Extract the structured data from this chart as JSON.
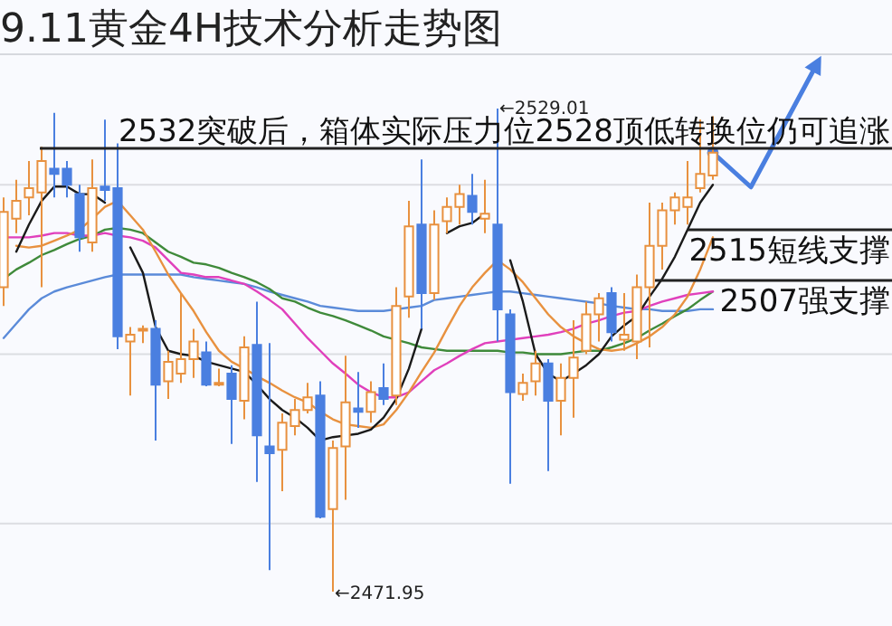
{
  "chart_data": {
    "type": "candlestick",
    "title": "9.11黄金4H技术分析走势图",
    "categories": [
      null,
      null,
      null,
      null,
      null,
      null,
      null,
      null,
      null,
      null,
      null,
      null,
      null,
      null,
      null,
      null,
      null,
      null,
      null,
      null,
      null,
      null,
      null,
      null,
      null,
      null,
      null,
      null,
      null,
      null,
      null,
      null,
      null,
      null,
      null,
      null,
      null,
      null,
      null,
      null,
      null,
      null,
      null,
      null,
      null,
      null,
      null,
      null,
      null,
      null,
      null,
      null,
      null,
      null,
      null,
      null,
      null
    ],
    "ohlc": [
      [
        2507.9,
        2518.5,
        2505.7,
        2516.8
      ],
      [
        2516.0,
        2520.6,
        2514.3,
        2518.1
      ],
      [
        2518.5,
        2522.8,
        2516.4,
        2519.6
      ],
      [
        2519.1,
        2524.5,
        2507.9,
        2522.8
      ],
      [
        2521.9,
        2528.5,
        2518.5,
        2521.3
      ],
      [
        2521.9,
        2522.8,
        2518.5,
        2520.0
      ],
      [
        2518.9,
        2520.0,
        2512.1,
        2513.8
      ],
      [
        2513.2,
        2523.0,
        2512.1,
        2519.6
      ],
      [
        2519.8,
        2527.7,
        2518.1,
        2519.4
      ],
      [
        2519.6,
        2524.9,
        2500.6,
        2502.1
      ],
      [
        2501.5,
        2503.2,
        2495.1,
        2502.3
      ],
      [
        2502.8,
        2503.4,
        2501.3,
        2503.0
      ],
      [
        2503.0,
        2504.0,
        2489.8,
        2496.4
      ],
      [
        2496.8,
        2500.4,
        2494.7,
        2499.1
      ],
      [
        2497.7,
        2507.2,
        2496.6,
        2499.4
      ],
      [
        2499.4,
        2503.0,
        2497.2,
        2501.5
      ],
      [
        2500.2,
        2501.5,
        2496.2,
        2496.4
      ],
      [
        2496.4,
        2498.3,
        2496.2,
        2496.6
      ],
      [
        2497.7,
        2498.7,
        2489.4,
        2494.7
      ],
      [
        2494.5,
        2502.1,
        2492.3,
        2500.8
      ],
      [
        2501.1,
        2506.2,
        2484.9,
        2490.4
      ],
      [
        2489.1,
        2501.3,
        2474.5,
        2488.3
      ],
      [
        2488.7,
        2493.0,
        2483.8,
        2491.9
      ],
      [
        2491.5,
        2494.7,
        2490.4,
        2493.4
      ],
      [
        2493.4,
        2496.6,
        2493.0,
        2494.9
      ],
      [
        2495.1,
        2496.8,
        2480.6,
        2480.8
      ],
      [
        2481.7,
        2489.8,
        2471.95,
        2488.9
      ],
      [
        2489.1,
        2499.8,
        2482.8,
        2494.3
      ],
      [
        2493.6,
        2497.9,
        2491.3,
        2493.2
      ],
      [
        2493.2,
        2496.8,
        2491.9,
        2495.5
      ],
      [
        2496.0,
        2498.9,
        2494.0,
        2494.7
      ],
      [
        2495.1,
        2507.9,
        2494.0,
        2505.7
      ],
      [
        2506.8,
        2518.1,
        2504.3,
        2515.1
      ],
      [
        2515.3,
        2523.0,
        2503.0,
        2507.2
      ],
      [
        2507.2,
        2517.0,
        2506.4,
        2515.3
      ],
      [
        2515.7,
        2518.5,
        2514.3,
        2517.4
      ],
      [
        2517.4,
        2520.0,
        2515.3,
        2518.9
      ],
      [
        2518.7,
        2521.3,
        2515.3,
        2516.8
      ],
      [
        2516.0,
        2520.6,
        2514.3,
        2516.6
      ],
      [
        2515.3,
        2529.01,
        2501.5,
        2505.3
      ],
      [
        2504.7,
        2505.3,
        2484.7,
        2495.5
      ],
      [
        2495.3,
        2497.7,
        2494.5,
        2496.6
      ],
      [
        2496.8,
        2500.4,
        2495.1,
        2498.9
      ],
      [
        2498.9,
        2499.4,
        2486.2,
        2494.5
      ],
      [
        2494.5,
        2498.9,
        2490.4,
        2497.2
      ],
      [
        2497.2,
        2504.0,
        2492.5,
        2499.6
      ],
      [
        2500.4,
        2506.2,
        2500.0,
        2504.7
      ],
      [
        2504.7,
        2507.2,
        2501.5,
        2506.6
      ],
      [
        2507.2,
        2507.9,
        2501.5,
        2502.6
      ],
      [
        2501.7,
        2507.2,
        2500.4,
        2502.3
      ],
      [
        2501.5,
        2509.4,
        2499.4,
        2507.9
      ],
      [
        2507.9,
        2517.9,
        2500.8,
        2512.8
      ],
      [
        2512.8,
        2517.9,
        2510.0,
        2517.0
      ],
      [
        2517.0,
        2519.1,
        2515.3,
        2518.5
      ],
      [
        2517.4,
        2522.8,
        2515.3,
        2518.5
      ],
      [
        2519.6,
        2527.7,
        2519.1,
        2521.3
      ],
      [
        2521.1,
        2528.1,
        2520.6,
        2523.8
      ]
    ],
    "colors": [
      "#e8913f",
      "#e8913f",
      "#e8913f",
      "#e8913f",
      "#4a7fe0",
      "#4a7fe0",
      "#4a7fe0",
      "#e8913f",
      "#4a7fe0",
      "#4a7fe0",
      "#e8913f",
      "#e8913f",
      "#4a7fe0",
      "#e8913f",
      "#e8913f",
      "#e8913f",
      "#4a7fe0",
      "#e8913f",
      "#4a7fe0",
      "#e8913f",
      "#4a7fe0",
      "#4a7fe0",
      "#e8913f",
      "#e8913f",
      "#e8913f",
      "#4a7fe0",
      "#e8913f",
      "#e8913f",
      "#4a7fe0",
      "#e8913f",
      "#4a7fe0",
      "#e8913f",
      "#e8913f",
      "#4a7fe0",
      "#e8913f",
      "#e8913f",
      "#e8913f",
      "#4a7fe0",
      "#e8913f",
      "#4a7fe0",
      "#4a7fe0",
      "#e8913f",
      "#e8913f",
      "#4a7fe0",
      "#e8913f",
      "#e8913f",
      "#e8913f",
      "#e8913f",
      "#4a7fe0",
      "#e8913f",
      "#e8913f",
      "#e8913f",
      "#e8913f",
      "#e8913f",
      "#e8913f",
      "#e8913f",
      "#e8913f"
    ],
    "series": [
      {
        "type": "line",
        "color": "#5b8bd9",
        "values": [
          2501.9,
          2503.6,
          2505.3,
          2506.6,
          2507.4,
          2507.9,
          2508.3,
          2508.7,
          2509.1,
          2509.4,
          2509.4,
          2509.4,
          2509.4,
          2509.4,
          2509.4,
          2509.1,
          2508.9,
          2508.7,
          2508.5,
          2508.3,
          2507.9,
          2507.4,
          2507.0,
          2506.6,
          2506.2,
          2505.7,
          2505.5,
          2505.3,
          2505.1,
          2505.1,
          2505.1,
          2505.3,
          2505.5,
          2505.7,
          2506.4,
          2506.6,
          2506.8,
          2507.0,
          2507.2,
          2507.4,
          2507.4,
          2507.2,
          2507.0,
          2506.8,
          2506.6,
          2506.4,
          2506.2,
          2506.0,
          2505.7,
          2505.5,
          2505.3,
          2505.3,
          2505.1,
          2505.1,
          2505.1,
          2505.3,
          2505.3
        ]
      },
      {
        "type": "line",
        "color": "#3f8a3a",
        "values": [
          2508.9,
          2510.0,
          2510.8,
          2511.7,
          2512.3,
          2513.0,
          2513.6,
          2514.0,
          2514.7,
          2514.9,
          2514.7,
          2514.3,
          2513.2,
          2512.1,
          2511.5,
          2510.8,
          2510.6,
          2510.2,
          2509.6,
          2509.1,
          2508.5,
          2507.7,
          2506.6,
          2506.2,
          2505.5,
          2504.9,
          2504.5,
          2504.0,
          2503.4,
          2502.8,
          2502.1,
          2501.7,
          2501.3,
          2500.8,
          2500.6,
          2500.4,
          2500.4,
          2500.4,
          2500.4,
          2500.4,
          2500.2,
          2500.2,
          2500.0,
          2500.0,
          2500.0,
          2500.2,
          2500.4,
          2500.4,
          2500.8,
          2501.3,
          2501.9,
          2502.8,
          2503.6,
          2504.5,
          2505.3,
          2506.4,
          2507.4
        ]
      },
      {
        "type": "line",
        "color": "#e040bc",
        "values": [
          2513.8,
          2513.8,
          2513.8,
          2514.0,
          2514.3,
          2514.3,
          2514.0,
          2514.0,
          2514.3,
          2514.0,
          2513.8,
          2513.4,
          2512.6,
          2511.1,
          2509.6,
          2509.4,
          2509.1,
          2509.1,
          2508.7,
          2508.3,
          2507.4,
          2506.4,
          2505.3,
          2503.6,
          2501.9,
          2500.4,
          2498.9,
          2497.7,
          2496.4,
          2495.5,
          2494.9,
          2494.9,
          2495.5,
          2496.8,
          2498.1,
          2498.9,
          2499.8,
          2500.6,
          2501.3,
          2501.5,
          2501.7,
          2501.9,
          2502.1,
          2502.3,
          2502.6,
          2503.0,
          2503.6,
          2504.0,
          2504.5,
          2504.9,
          2505.1,
          2505.7,
          2506.2,
          2506.6,
          2507.0,
          2507.2,
          2507.4
        ]
      },
      {
        "type": "line",
        "color": "#e8913f",
        "values": [
          null,
          2512.8,
          2512.6,
          2512.8,
          2513.4,
          2514.0,
          2514.7,
          2516.0,
          2517.4,
          2518.1,
          2516.4,
          2514.7,
          2512.1,
          2509.4,
          2507.2,
          2505.1,
          2502.6,
          2500.4,
          2499.1,
          2498.3,
          2497.4,
          2496.6,
          2495.7,
          2494.9,
          2494.3,
          2493.2,
          2492.3,
          2491.7,
          2491.5,
          2491.3,
          2491.7,
          2493.4,
          2495.5,
          2497.9,
          2500.2,
          2503.0,
          2505.7,
          2507.9,
          2509.6,
          2511.1,
          2510.0,
          2508.5,
          2506.6,
          2504.7,
          2503.2,
          2502.1,
          2501.3,
          2500.6,
          2500.4,
          2500.6,
          2501.3,
          2502.1,
          2503.2,
          2504.7,
          2506.8,
          2510.0,
          2513.8
        ]
      },
      {
        "type": "line",
        "color": "#1a1a1a",
        "values": [
          null,
          2512.1,
          2515.3,
          2518.1,
          2519.8,
          2519.8,
          2518.9,
          2518.9,
          2517.9,
          null,
          2512.6,
          2509.6,
          2503.2,
          2500.4,
          2500.0,
          2499.8,
          2499.1,
          2498.7,
          2498.3,
          2497.9,
          2496.4,
          2494.7,
          2493.4,
          2492.5,
          2491.3,
          2489.8,
          2490.2,
          2490.4,
          2490.6,
          2491.1,
          2492.5,
          2494.7,
          2498.3,
          2503.0,
          null,
          2514.3,
          2515.1,
          2515.5,
          2516.6,
          null,
          2511.1,
          2506.2,
          2500.0,
          2497.7,
          2496.8,
          2497.7,
          2498.7,
          2500.0,
          2502.1,
          2503.4,
          2504.5,
          2506.8,
          2508.9,
          2511.5,
          2514.7,
          2517.9,
          2520.0
        ]
      }
    ],
    "yticks": [
      {
        "value": 2480,
        "label": null
      },
      {
        "value": 2500,
        "label": null
      },
      {
        "value": 2520,
        "label": null
      }
    ],
    "grid": "y",
    "ref_lines": [
      {
        "axis": "y",
        "value": 2524.3,
        "label": "2532突破后，箱体实际压力位2528顶低转换位仍可追涨",
        "color": "#222222"
      },
      {
        "axis": "y",
        "value": 2514.7,
        "label": "2515短线支撑",
        "color": "#222222"
      },
      {
        "axis": "y",
        "value": 2508.7,
        "label": "2507强支撑",
        "color": "#222222"
      }
    ],
    "annotations": [
      "←2529.01",
      "←2471.95"
    ]
  }
}
